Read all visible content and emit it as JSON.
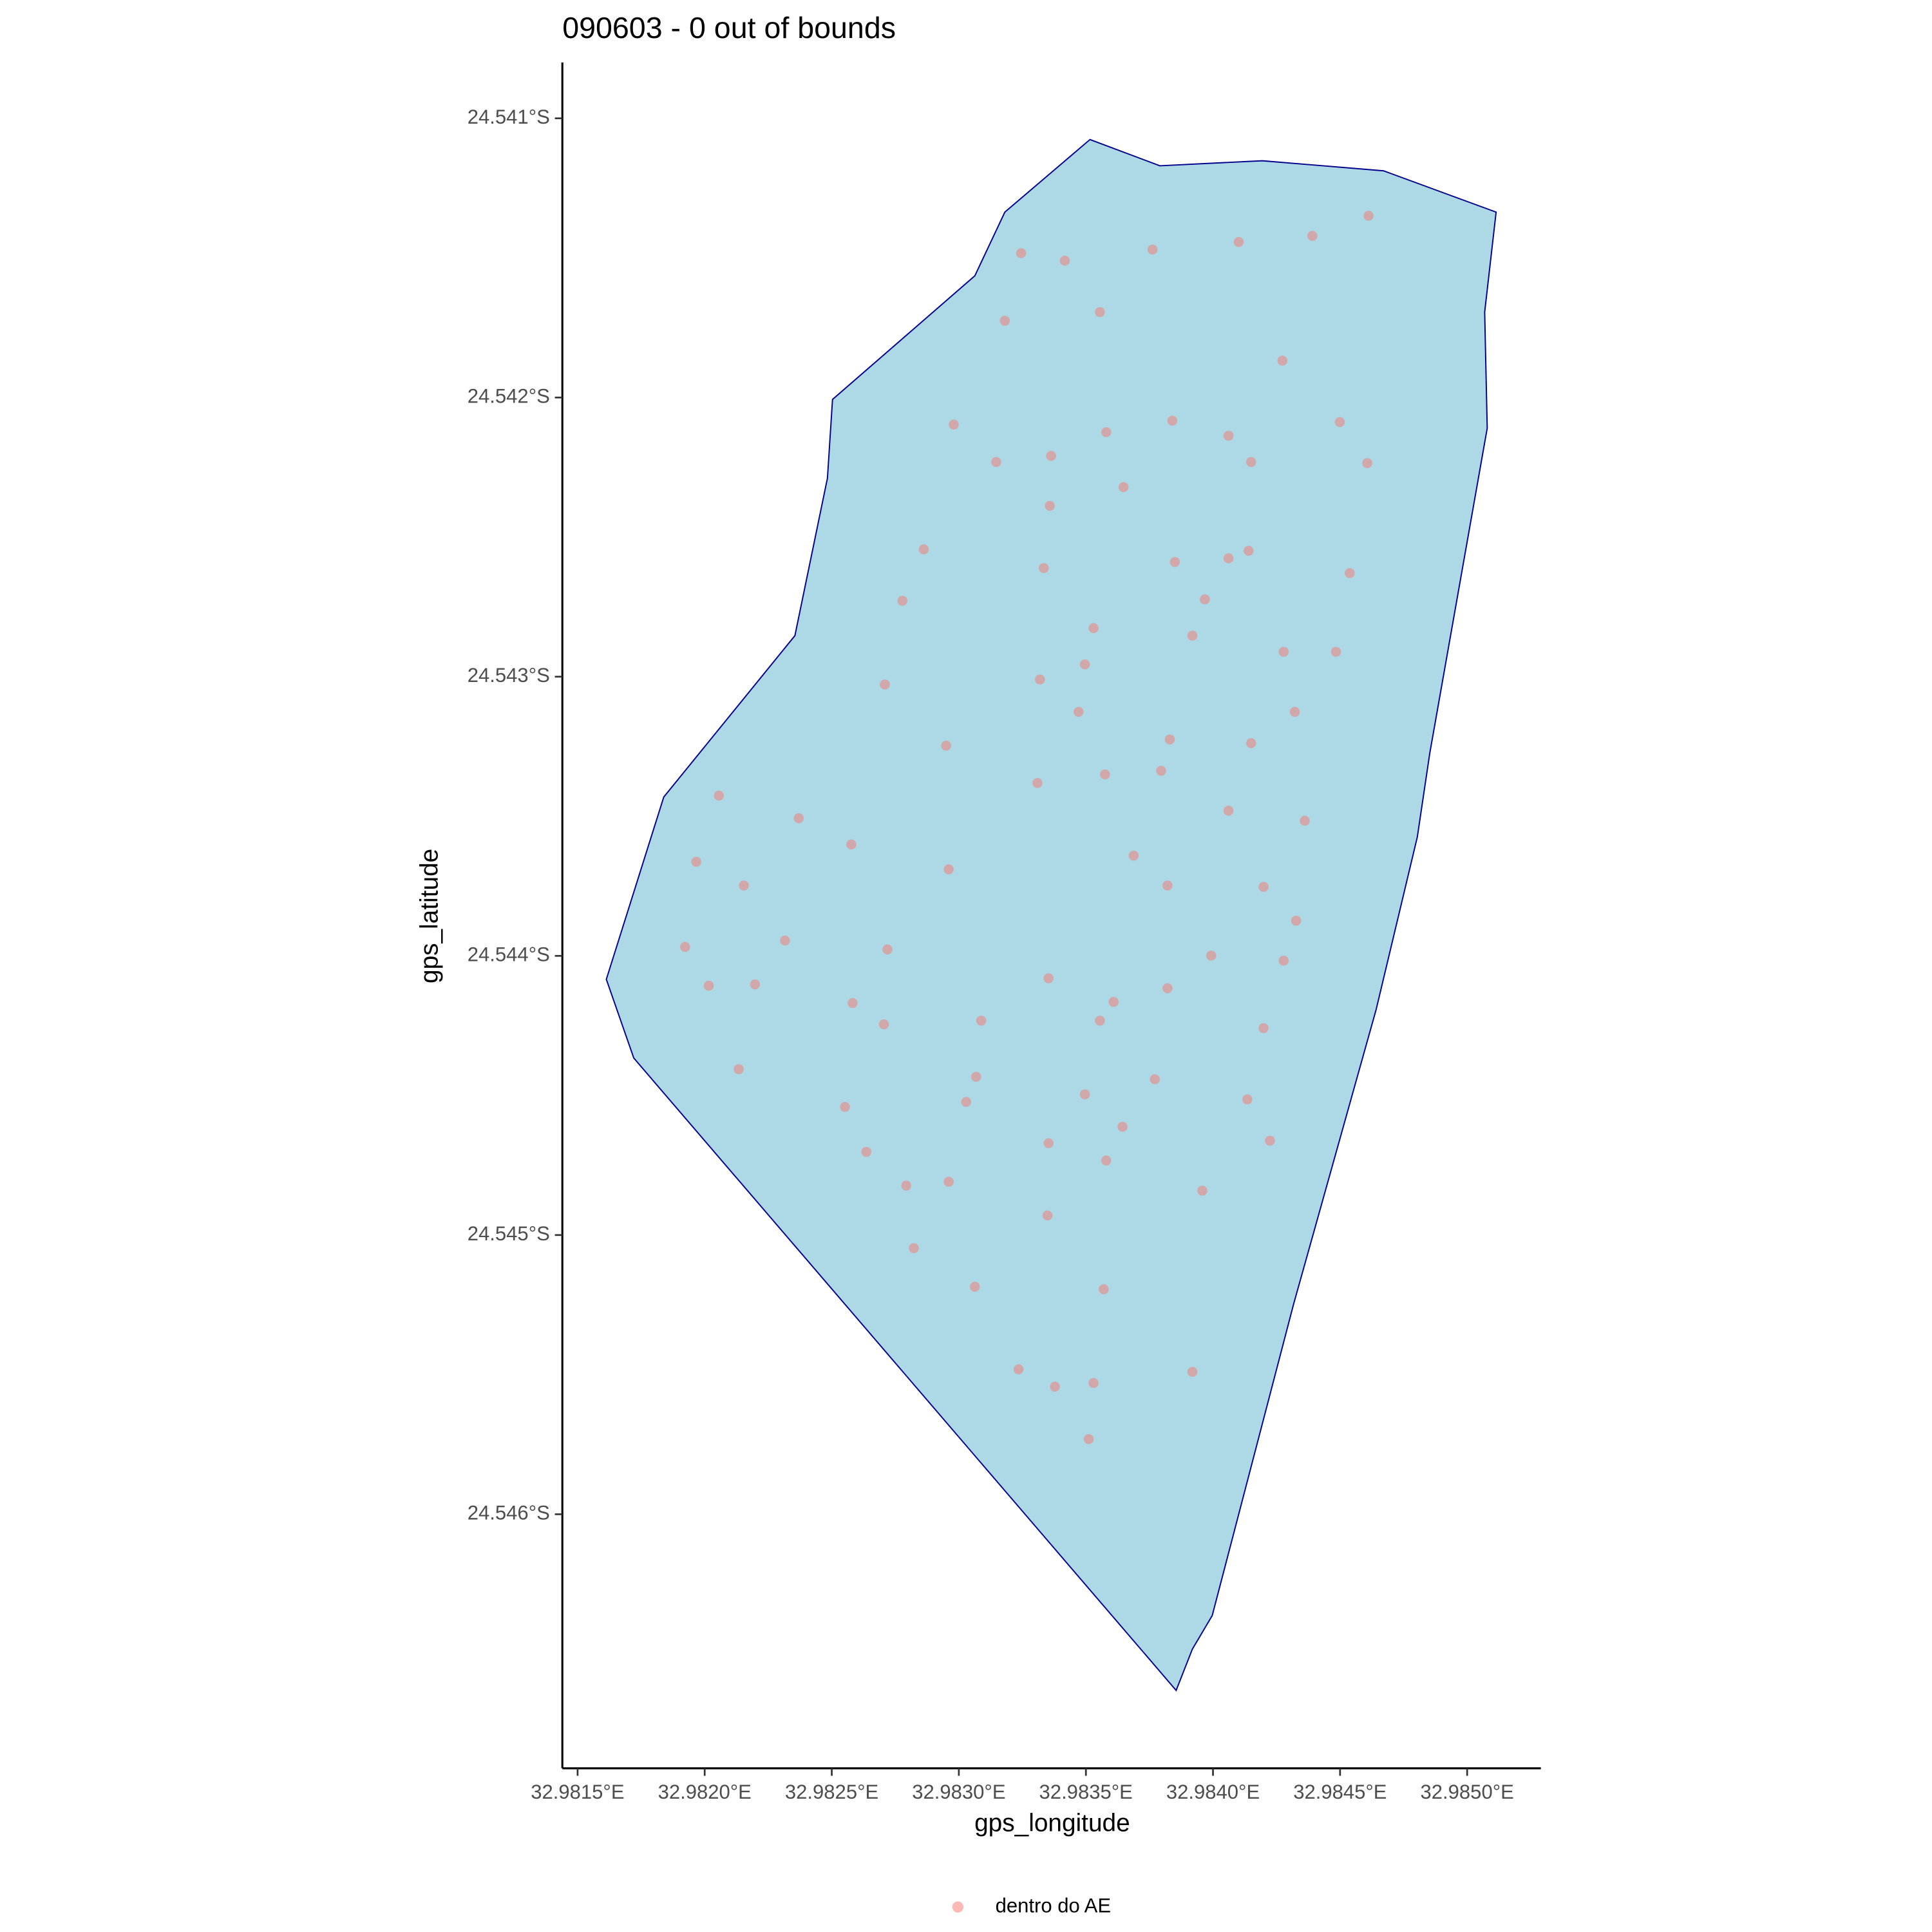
{
  "chart_data": {
    "type": "map",
    "title": "090603 - 0 out of bounds",
    "x_label": "gps_longitude",
    "y_label": "gps_latitude",
    "xlim": [
      32.98144,
      32.98529
    ],
    "ylim": [
      -24.54691,
      -24.5408
    ],
    "xticks": [
      {
        "value": 32.9815,
        "label": "32.9815°E"
      },
      {
        "value": 32.982,
        "label": "32.9820°E"
      },
      {
        "value": 32.9825,
        "label": "32.9825°E"
      },
      {
        "value": 32.983,
        "label": "32.9830°E"
      },
      {
        "value": 32.9835,
        "label": "32.9835°E"
      },
      {
        "value": 32.984,
        "label": "32.9840°E"
      },
      {
        "value": 32.9845,
        "label": "32.9845°E"
      },
      {
        "value": 32.985,
        "label": "32.9850°E"
      }
    ],
    "yticks": [
      {
        "value": -24.541,
        "label": "24.541°S"
      },
      {
        "value": -24.542,
        "label": "24.542°S"
      },
      {
        "value": -24.543,
        "label": "24.543°S"
      },
      {
        "value": -24.544,
        "label": "24.544°S"
      },
      {
        "value": -24.545,
        "label": "24.545°S"
      },
      {
        "value": -24.546,
        "label": "24.546°S"
      }
    ],
    "polygon": {
      "fill": "#add8e6",
      "stroke": "#00008b",
      "x": [
        32.983516,
        32.983791,
        32.984194,
        32.984671,
        32.985114,
        32.985069,
        32.985079,
        32.984853,
        32.984804,
        32.984642,
        32.984317,
        32.983997,
        32.983919,
        32.983855,
        32.981721,
        32.981613,
        32.981839,
        32.982355,
        32.982483,
        32.982503,
        32.983063,
        32.983181
      ],
      "values": [
        -24.541076,
        -24.54117,
        -24.541152,
        -24.541188,
        -24.541336,
        -24.541694,
        -24.54211,
        -24.543274,
        -24.543574,
        -24.544192,
        -24.545248,
        -24.546363,
        -24.546483,
        -24.546631,
        -24.544366,
        -24.544084,
        -24.543431,
        -24.542853,
        -24.542289,
        -24.542007,
        -24.541564,
        -24.541336
      ]
    },
    "series": [
      {
        "name": "dentro do AE",
        "color": "#F8766D",
        "alpha": 0.5,
        "x": [
          32.984612,
          32.984391,
          32.984101,
          32.983762,
          32.983245,
          32.983417,
          32.983555,
          32.983181,
          32.984273,
          32.98298,
          32.98384,
          32.984499,
          32.98358,
          32.984061,
          32.983363,
          32.983147,
          32.98415,
          32.984607,
          32.983648,
          32.983358,
          32.982862,
          32.98414,
          32.984061,
          32.98385,
          32.983334,
          32.984538,
          32.983968,
          32.982778,
          32.98353,
          32.983919,
          32.984278,
          32.984484,
          32.983496,
          32.982709,
          32.983319,
          32.983471,
          32.984322,
          32.98383,
          32.98295,
          32.98415,
          32.983796,
          32.983575,
          32.983309,
          32.982056,
          32.984061,
          32.98237,
          32.984361,
          32.982577,
          32.983688,
          32.981967,
          32.98296,
          32.982154,
          32.983821,
          32.984199,
          32.984327,
          32.982316,
          32.981923,
          32.982719,
          32.983993,
          32.984278,
          32.983353,
          32.982016,
          32.982198,
          32.983821,
          32.983609,
          32.982582,
          32.983088,
          32.983555,
          32.982705,
          32.984199,
          32.982134,
          32.983068,
          32.983771,
          32.983496,
          32.984135,
          32.983029,
          32.982552,
          32.983644,
          32.983353,
          32.984224,
          32.982636,
          32.98358,
          32.98296,
          32.982793,
          32.983958,
          32.983349,
          32.982823,
          32.983063,
          32.98357,
          32.983235,
          32.983919,
          32.98353,
          32.983378,
          32.983511
        ],
        "values": [
          -24.541349,
          -24.541421,
          -24.541443,
          -24.54147,
          -24.541483,
          -24.54151,
          -24.541694,
          -24.541725,
          -24.541868,
          -24.542097,
          -24.542083,
          -24.542088,
          -24.542124,
          -24.542137,
          -24.542209,
          -24.542231,
          -24.542231,
          -24.542235,
          -24.542321,
          -24.542388,
          -24.542544,
          -24.542549,
          -24.542576,
          -24.542589,
          -24.542611,
          -24.542629,
          -24.542723,
          -24.542728,
          -24.542826,
          -24.542853,
          -24.542911,
          -24.542911,
          -24.542956,
          -24.543028,
          -24.54301,
          -24.543126,
          -24.543126,
          -24.543225,
          -24.543247,
          -24.543238,
          -24.543337,
          -24.54335,
          -24.543381,
          -24.543426,
          -24.54348,
          -24.543507,
          -24.543516,
          -24.543601,
          -24.543641,
          -24.543663,
          -24.54369,
          -24.543748,
          -24.543748,
          -24.543753,
          -24.543874,
          -24.543945,
          -24.543968,
          -24.543977,
          -24.543999,
          -24.544017,
          -24.54408,
          -24.544107,
          -24.544102,
          -24.544116,
          -24.544165,
          -24.544169,
          -24.544232,
          -24.544232,
          -24.544245,
          -24.544259,
          -24.544406,
          -24.544433,
          -24.544442,
          -24.544496,
          -24.544514,
          -24.544523,
          -24.544541,
          -24.544612,
          -24.544671,
          -24.544662,
          -24.544702,
          -24.544733,
          -24.544809,
          -24.544823,
          -24.544841,
          -24.54493,
          -24.545047,
          -24.545185,
          -24.545194,
          -24.545481,
          -24.54549,
          -24.54553,
          -24.545543,
          -24.545731
        ]
      }
    ],
    "legend": "bottom"
  }
}
